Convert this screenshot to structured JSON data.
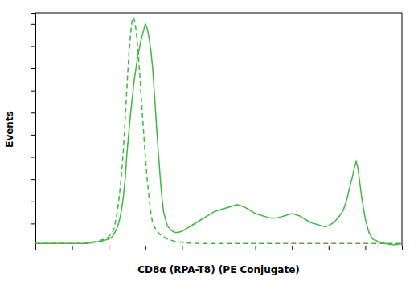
{
  "chart_data": {
    "type": "line",
    "xlabel": "CD8α (RPA-T8) (PE Conjugate)",
    "ylabel": "Events",
    "color": "#3db83d",
    "xlim": [
      0,
      1
    ],
    "ylim": [
      0,
      1.05
    ],
    "xticks": [
      0.0,
      0.1,
      0.2,
      0.3,
      0.4,
      0.5,
      0.6,
      0.7,
      0.8,
      0.9,
      1.0
    ],
    "yticks": [
      0.0,
      0.1,
      0.2,
      0.3,
      0.4,
      0.5,
      0.6,
      0.7,
      0.8,
      0.9,
      1.0
    ],
    "tick_labels": false,
    "grid": false,
    "series": [
      {
        "line_style": "dashed",
        "x": [
          0.0,
          0.05,
          0.1,
          0.13,
          0.15,
          0.17,
          0.19,
          0.2,
          0.21,
          0.215,
          0.22,
          0.225,
          0.23,
          0.235,
          0.24,
          0.245,
          0.25,
          0.255,
          0.26,
          0.265,
          0.27,
          0.275,
          0.28,
          0.285,
          0.29,
          0.295,
          0.3,
          0.305,
          0.31,
          0.315,
          0.32,
          0.33,
          0.34,
          0.35,
          0.36,
          0.37,
          0.38,
          0.4,
          0.42,
          0.45,
          0.5,
          0.55,
          0.6,
          0.7,
          0.8,
          0.9,
          1.0
        ],
        "values": [
          0.01,
          0.01,
          0.01,
          0.01,
          0.015,
          0.02,
          0.03,
          0.04,
          0.06,
          0.08,
          0.12,
          0.17,
          0.24,
          0.32,
          0.43,
          0.57,
          0.72,
          0.86,
          0.96,
          1.03,
          1.02,
          0.97,
          0.88,
          0.77,
          0.64,
          0.52,
          0.4,
          0.3,
          0.22,
          0.15,
          0.1,
          0.07,
          0.05,
          0.04,
          0.03,
          0.025,
          0.02,
          0.015,
          0.012,
          0.01,
          0.01,
          0.01,
          0.01,
          0.01,
          0.01,
          0.01,
          0.01
        ]
      },
      {
        "line_style": "solid",
        "x": [
          0.0,
          0.02,
          0.05,
          0.08,
          0.1,
          0.12,
          0.14,
          0.16,
          0.18,
          0.19,
          0.2,
          0.21,
          0.215,
          0.22,
          0.225,
          0.23,
          0.235,
          0.24,
          0.245,
          0.25,
          0.26,
          0.27,
          0.28,
          0.29,
          0.295,
          0.3,
          0.305,
          0.31,
          0.315,
          0.32,
          0.325,
          0.33,
          0.335,
          0.34,
          0.345,
          0.35,
          0.36,
          0.37,
          0.38,
          0.39,
          0.4,
          0.41,
          0.42,
          0.43,
          0.44,
          0.45,
          0.46,
          0.47,
          0.48,
          0.49,
          0.5,
          0.51,
          0.52,
          0.53,
          0.54,
          0.55,
          0.56,
          0.57,
          0.58,
          0.59,
          0.6,
          0.61,
          0.62,
          0.63,
          0.64,
          0.65,
          0.66,
          0.67,
          0.68,
          0.69,
          0.7,
          0.71,
          0.72,
          0.73,
          0.74,
          0.75,
          0.76,
          0.77,
          0.78,
          0.79,
          0.8,
          0.81,
          0.82,
          0.83,
          0.84,
          0.845,
          0.85,
          0.855,
          0.86,
          0.865,
          0.87,
          0.875,
          0.88,
          0.89,
          0.9,
          0.91,
          0.92,
          0.94,
          0.96,
          0.98,
          1.0
        ],
        "values": [
          0.01,
          0.01,
          0.01,
          0.01,
          0.01,
          0.01,
          0.01,
          0.015,
          0.02,
          0.025,
          0.03,
          0.04,
          0.055,
          0.07,
          0.09,
          0.12,
          0.16,
          0.22,
          0.3,
          0.42,
          0.6,
          0.75,
          0.86,
          0.94,
          0.97,
          1.0,
          0.98,
          0.94,
          0.88,
          0.8,
          0.68,
          0.55,
          0.43,
          0.32,
          0.22,
          0.15,
          0.09,
          0.07,
          0.06,
          0.06,
          0.065,
          0.075,
          0.085,
          0.095,
          0.105,
          0.115,
          0.125,
          0.135,
          0.145,
          0.155,
          0.16,
          0.165,
          0.17,
          0.175,
          0.18,
          0.185,
          0.18,
          0.175,
          0.165,
          0.155,
          0.145,
          0.14,
          0.135,
          0.13,
          0.125,
          0.125,
          0.125,
          0.13,
          0.135,
          0.14,
          0.145,
          0.14,
          0.135,
          0.125,
          0.115,
          0.105,
          0.1,
          0.095,
          0.09,
          0.085,
          0.09,
          0.1,
          0.115,
          0.135,
          0.16,
          0.185,
          0.21,
          0.245,
          0.28,
          0.31,
          0.35,
          0.38,
          0.35,
          0.22,
          0.12,
          0.06,
          0.03,
          0.015,
          0.008,
          0.004,
          0.01
        ]
      }
    ]
  }
}
